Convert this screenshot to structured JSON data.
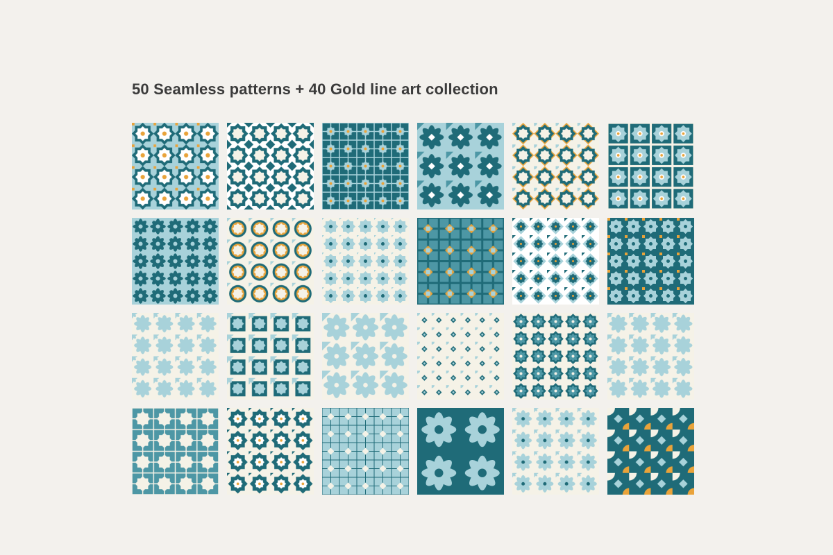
{
  "header": {
    "title": "50 Seamless patterns + 40 Gold line art collection"
  }
}
